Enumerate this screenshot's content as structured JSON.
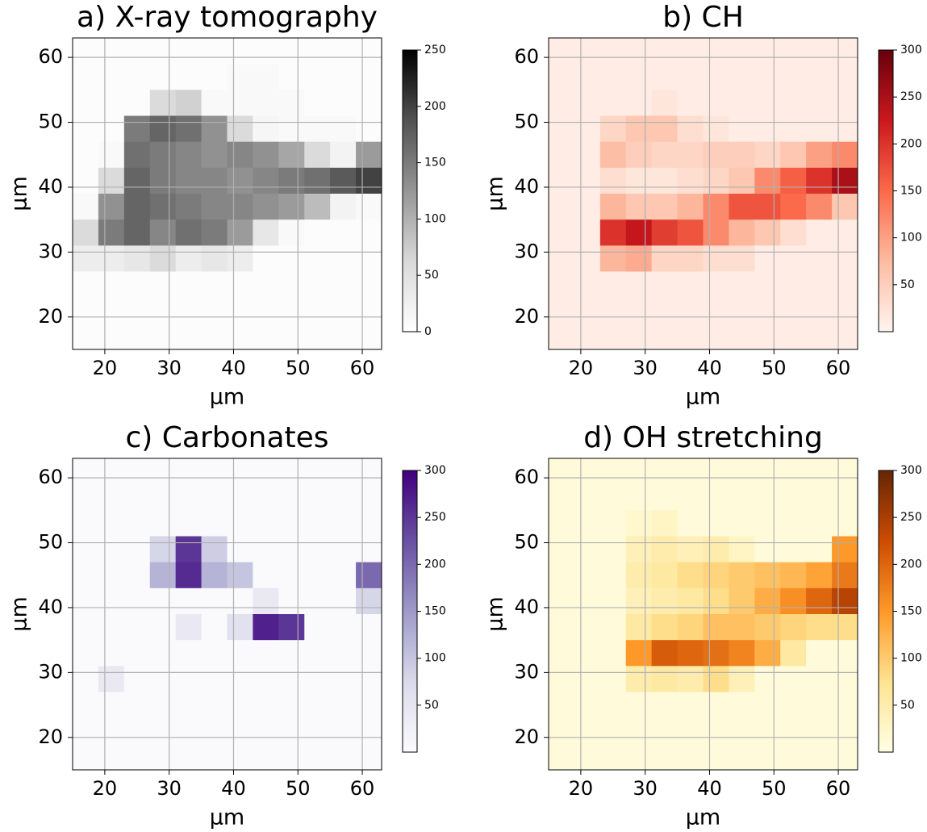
{
  "chart_data": [
    {
      "type": "heatmap",
      "title": "a) X-ray tomography",
      "xlabel": "μm",
      "ylabel": "μm",
      "cmap": "Greys",
      "grid": true,
      "x": [
        17,
        21,
        25,
        29,
        33,
        37,
        41,
        45,
        49,
        53,
        57,
        61
      ],
      "y": [
        61,
        57,
        53,
        49,
        45,
        41,
        37,
        33,
        29,
        25,
        21,
        17
      ],
      "xlim": [
        15,
        63
      ],
      "ylim": [
        15,
        63
      ],
      "xticks": [
        20,
        30,
        40,
        50,
        60
      ],
      "yticks": [
        20,
        30,
        40,
        50,
        60
      ],
      "clim": [
        0,
        250
      ],
      "cticks": [
        0,
        50,
        100,
        150,
        200,
        250
      ],
      "z": [
        [
          5,
          5,
          5,
          5,
          5,
          5,
          5,
          5,
          5,
          5,
          5,
          5
        ],
        [
          5,
          5,
          5,
          5,
          5,
          5,
          10,
          10,
          5,
          5,
          5,
          5
        ],
        [
          5,
          5,
          5,
          60,
          70,
          10,
          10,
          10,
          10,
          5,
          5,
          5
        ],
        [
          5,
          5,
          150,
          170,
          160,
          130,
          60,
          15,
          10,
          10,
          10,
          5
        ],
        [
          5,
          10,
          160,
          150,
          140,
          130,
          140,
          130,
          110,
          60,
          20,
          120
        ],
        [
          5,
          60,
          170,
          150,
          140,
          140,
          130,
          140,
          150,
          160,
          180,
          200
        ],
        [
          10,
          130,
          170,
          160,
          150,
          140,
          140,
          130,
          120,
          90,
          20,
          10
        ],
        [
          60,
          150,
          170,
          140,
          160,
          150,
          120,
          40,
          10,
          5,
          5,
          5
        ],
        [
          30,
          30,
          40,
          60,
          30,
          40,
          30,
          5,
          5,
          5,
          5,
          5
        ],
        [
          5,
          5,
          5,
          5,
          5,
          5,
          5,
          5,
          5,
          5,
          5,
          5
        ],
        [
          5,
          5,
          5,
          5,
          5,
          5,
          5,
          5,
          5,
          5,
          5,
          5
        ],
        [
          5,
          5,
          5,
          5,
          5,
          5,
          5,
          5,
          5,
          5,
          5,
          5
        ]
      ]
    },
    {
      "type": "heatmap",
      "title": "b) CH",
      "xlabel": "μm",
      "ylabel": "μm",
      "cmap": "Reds",
      "grid": true,
      "x": [
        17,
        21,
        25,
        29,
        33,
        37,
        41,
        45,
        49,
        53,
        57,
        61
      ],
      "y": [
        61,
        57,
        53,
        49,
        45,
        41,
        37,
        33,
        29,
        25,
        21,
        17
      ],
      "xlim": [
        15,
        63
      ],
      "ylim": [
        15,
        63
      ],
      "xticks": [
        20,
        30,
        40,
        50,
        60
      ],
      "yticks": [
        20,
        30,
        40,
        50,
        60
      ],
      "clim": [
        0,
        300
      ],
      "cticks": [
        50,
        100,
        150,
        200,
        250,
        300
      ],
      "z": [
        [
          10,
          10,
          10,
          10,
          10,
          10,
          10,
          10,
          10,
          10,
          10,
          10
        ],
        [
          10,
          10,
          10,
          10,
          10,
          10,
          10,
          10,
          10,
          10,
          10,
          10
        ],
        [
          10,
          10,
          10,
          10,
          20,
          10,
          10,
          10,
          10,
          10,
          10,
          10
        ],
        [
          10,
          10,
          40,
          60,
          60,
          30,
          20,
          10,
          10,
          10,
          10,
          10
        ],
        [
          10,
          10,
          70,
          50,
          40,
          40,
          50,
          50,
          40,
          60,
          100,
          120
        ],
        [
          10,
          10,
          30,
          20,
          20,
          30,
          40,
          60,
          120,
          160,
          200,
          250
        ],
        [
          10,
          10,
          80,
          60,
          60,
          80,
          120,
          170,
          170,
          150,
          120,
          60
        ],
        [
          10,
          10,
          200,
          230,
          190,
          170,
          120,
          80,
          60,
          30,
          10,
          10
        ],
        [
          10,
          10,
          80,
          90,
          40,
          40,
          30,
          30,
          10,
          10,
          10,
          10
        ],
        [
          10,
          10,
          10,
          10,
          10,
          10,
          10,
          10,
          10,
          10,
          10,
          10
        ],
        [
          10,
          10,
          10,
          10,
          10,
          10,
          10,
          10,
          10,
          10,
          10,
          10
        ],
        [
          10,
          10,
          10,
          10,
          10,
          10,
          10,
          10,
          10,
          10,
          10,
          10
        ]
      ]
    },
    {
      "type": "heatmap",
      "title": "c) Carbonates",
      "xlabel": "μm",
      "ylabel": "μm",
      "cmap": "Purples",
      "grid": true,
      "x": [
        17,
        21,
        25,
        29,
        33,
        37,
        41,
        45,
        49,
        53,
        57,
        61
      ],
      "y": [
        61,
        57,
        53,
        49,
        45,
        41,
        37,
        33,
        29,
        25,
        21,
        17
      ],
      "xlim": [
        15,
        63
      ],
      "ylim": [
        15,
        63
      ],
      "xticks": [
        20,
        30,
        40,
        50,
        60
      ],
      "yticks": [
        20,
        30,
        40,
        50,
        60
      ],
      "clim": [
        0,
        300
      ],
      "cticks": [
        50,
        100,
        150,
        200,
        250,
        300
      ],
      "z": [
        [
          5,
          5,
          5,
          5,
          5,
          5,
          5,
          5,
          5,
          5,
          5,
          5
        ],
        [
          5,
          5,
          5,
          5,
          5,
          5,
          5,
          5,
          5,
          5,
          5,
          5
        ],
        [
          5,
          5,
          5,
          5,
          5,
          5,
          5,
          5,
          5,
          5,
          5,
          5
        ],
        [
          5,
          5,
          5,
          80,
          250,
          90,
          5,
          5,
          5,
          5,
          5,
          5
        ],
        [
          5,
          5,
          5,
          120,
          260,
          120,
          100,
          5,
          5,
          5,
          5,
          200
        ],
        [
          5,
          5,
          5,
          5,
          5,
          5,
          5,
          40,
          5,
          5,
          5,
          80
        ],
        [
          5,
          5,
          5,
          5,
          40,
          5,
          60,
          270,
          250,
          5,
          5,
          5
        ],
        [
          5,
          5,
          5,
          5,
          5,
          5,
          5,
          5,
          5,
          5,
          5,
          5
        ],
        [
          5,
          40,
          5,
          5,
          5,
          5,
          5,
          5,
          5,
          5,
          5,
          5
        ],
        [
          5,
          5,
          5,
          5,
          5,
          5,
          5,
          5,
          5,
          5,
          5,
          5
        ],
        [
          5,
          5,
          5,
          5,
          5,
          5,
          5,
          5,
          5,
          5,
          5,
          5
        ],
        [
          5,
          5,
          5,
          5,
          5,
          5,
          5,
          5,
          5,
          5,
          5,
          5
        ]
      ]
    },
    {
      "type": "heatmap",
      "title": "d) OH stretching",
      "xlabel": "μm",
      "ylabel": "μm",
      "cmap": "YlOrBr",
      "grid": true,
      "x": [
        17,
        21,
        25,
        29,
        33,
        37,
        41,
        45,
        49,
        53,
        57,
        61
      ],
      "y": [
        61,
        57,
        53,
        49,
        45,
        41,
        37,
        33,
        29,
        25,
        21,
        17
      ],
      "xlim": [
        15,
        63
      ],
      "ylim": [
        15,
        63
      ],
      "xticks": [
        20,
        30,
        40,
        50,
        60
      ],
      "yticks": [
        20,
        30,
        40,
        50,
        60
      ],
      "clim": [
        0,
        300
      ],
      "cticks": [
        50,
        100,
        150,
        200,
        250,
        300
      ],
      "z": [
        [
          10,
          10,
          10,
          10,
          10,
          10,
          10,
          10,
          10,
          10,
          10,
          10
        ],
        [
          10,
          10,
          10,
          10,
          10,
          10,
          10,
          10,
          10,
          10,
          10,
          10
        ],
        [
          10,
          10,
          10,
          20,
          30,
          10,
          10,
          10,
          10,
          10,
          10,
          10
        ],
        [
          10,
          10,
          10,
          40,
          50,
          40,
          50,
          30,
          10,
          10,
          10,
          150
        ],
        [
          10,
          10,
          10,
          50,
          60,
          80,
          90,
          100,
          110,
          120,
          140,
          180
        ],
        [
          10,
          10,
          10,
          40,
          50,
          60,
          80,
          100,
          130,
          160,
          200,
          240
        ],
        [
          10,
          10,
          10,
          60,
          80,
          90,
          110,
          110,
          100,
          90,
          80,
          80
        ],
        [
          10,
          10,
          10,
          150,
          210,
          200,
          190,
          170,
          130,
          60,
          10,
          10
        ],
        [
          10,
          10,
          10,
          50,
          60,
          50,
          80,
          40,
          10,
          10,
          10,
          10
        ],
        [
          10,
          10,
          10,
          10,
          10,
          10,
          10,
          10,
          10,
          10,
          10,
          10
        ],
        [
          10,
          10,
          10,
          10,
          10,
          10,
          10,
          10,
          10,
          10,
          10,
          10
        ],
        [
          10,
          10,
          10,
          10,
          10,
          10,
          10,
          10,
          10,
          10,
          10,
          10
        ]
      ]
    }
  ]
}
